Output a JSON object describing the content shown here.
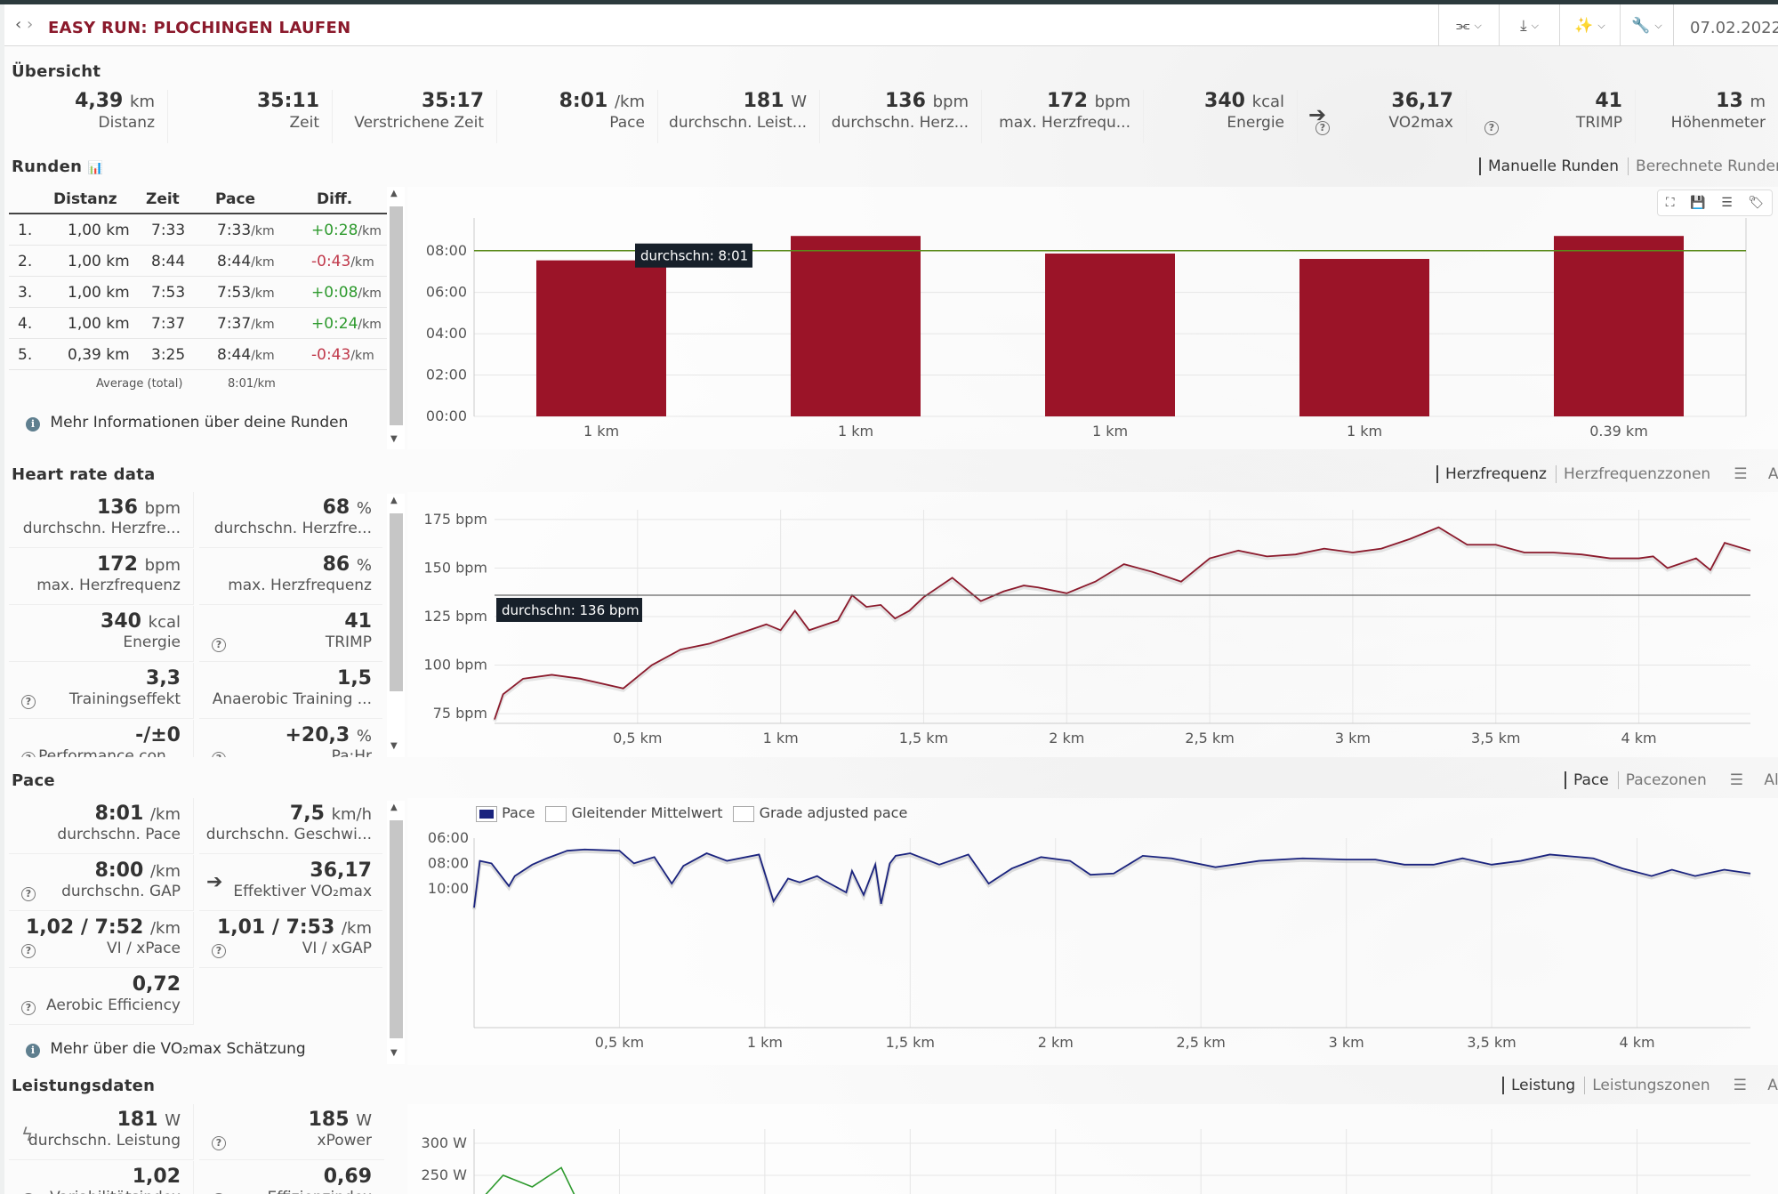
{
  "header": {
    "title": "EASY RUN: PLOCHINGEN LAUFEN",
    "date": "07.02.2022"
  },
  "overview": {
    "title": "Übersicht",
    "items": [
      {
        "value": "4,39",
        "unit": "km",
        "label": "Distanz"
      },
      {
        "value": "35:11",
        "unit": "",
        "label": "Zeit"
      },
      {
        "value": "35:17",
        "unit": "",
        "label": "Verstrichene Zeit"
      },
      {
        "value": "8:01",
        "unit": "/km",
        "label": "Pace"
      },
      {
        "value": "181",
        "unit": "W",
        "label": "durchschn. Leist..."
      },
      {
        "value": "136",
        "unit": "bpm",
        "label": "durchschn. Herz..."
      },
      {
        "value": "172",
        "unit": "bpm",
        "label": "max. Herzfrequ..."
      },
      {
        "value": "340",
        "unit": "kcal",
        "label": "Energie"
      },
      {
        "value": "36,17",
        "unit": "",
        "label": "VO2max"
      },
      {
        "value": "41",
        "unit": "",
        "label": "TRIMP"
      },
      {
        "value": "13",
        "unit": "m",
        "label": "Höhenmeter"
      }
    ]
  },
  "laps": {
    "title": "Runden",
    "tab_manual": "Manuelle Runden",
    "tab_calc": "Berechnete Runden",
    "headers": [
      "Distanz",
      "Zeit",
      "Pace",
      "Diff."
    ],
    "rows": [
      {
        "n": "1.",
        "dist": "1,00 km",
        "time": "7:33",
        "pace": "7:33",
        "diff": "+0:28"
      },
      {
        "n": "2.",
        "dist": "1,00 km",
        "time": "8:44",
        "pace": "8:44",
        "diff": "-0:43"
      },
      {
        "n": "3.",
        "dist": "1,00 km",
        "time": "7:53",
        "pace": "7:53",
        "diff": "+0:08"
      },
      {
        "n": "4.",
        "dist": "1,00 km",
        "time": "7:37",
        "pace": "7:37",
        "diff": "+0:24"
      },
      {
        "n": "5.",
        "dist": "0,39 km",
        "time": "3:25",
        "pace": "8:44",
        "diff": "-0:43"
      }
    ],
    "unit_per_km": "/km",
    "avg_label": "Average (total)",
    "avg_value": "8:01/km",
    "more_info": "Mehr Informationen über deine Runden"
  },
  "heart": {
    "title": "Heart rate data",
    "tabs": [
      "Herzfrequenz",
      "Herzfrequenzzonen",
      "Alle"
    ],
    "stats": [
      {
        "value": "136",
        "unit": "bpm",
        "label": "durchschn. Herzfre..."
      },
      {
        "value": "68",
        "unit": "%",
        "label": "durchschn. Herzfre..."
      },
      {
        "value": "172",
        "unit": "bpm",
        "label": "max. Herzfrequenz"
      },
      {
        "value": "86",
        "unit": "%",
        "label": "max. Herzfrequenz"
      },
      {
        "value": "340",
        "unit": "kcal",
        "label": "Energie"
      },
      {
        "value": "41",
        "unit": "",
        "label": "TRIMP"
      },
      {
        "value": "3,3",
        "unit": "",
        "label": "Trainingseffekt"
      },
      {
        "value": "1,5",
        "unit": "",
        "label": "Anaerobic Training ..."
      },
      {
        "value": "-/±0",
        "unit": "",
        "label": "Performance con..."
      },
      {
        "value": "+20,3",
        "unit": "%",
        "label": "Pa:Hr"
      }
    ]
  },
  "pace": {
    "title": "Pace",
    "tabs": [
      "Pace",
      "Pacezonen",
      "Alle"
    ],
    "legend": [
      "Pace",
      "Gleitender Mittelwert",
      "Grade adjusted pace"
    ],
    "stats": [
      {
        "value": "8:01",
        "unit": "/km",
        "label": "durchschn. Pace"
      },
      {
        "value": "7,5",
        "unit": "km/h",
        "label": "durchschn. Geschwi..."
      },
      {
        "value": "8:00",
        "unit": "/km",
        "label": "durchschn. GAP"
      },
      {
        "value": "36,17",
        "unit": "",
        "label": "Effektiver VO₂max"
      },
      {
        "value": "1,02 / 7:52",
        "unit": "/km",
        "label": "VI / xPace"
      },
      {
        "value": "1,01 / 7:53",
        "unit": "/km",
        "label": "VI / xGAP"
      },
      {
        "value": "0,72",
        "unit": "",
        "label": "Aerobic Efficiency"
      }
    ],
    "more_info": "Mehr über die VO₂max Schätzung"
  },
  "power": {
    "title": "Leistungsdaten",
    "tabs": [
      "Leistung",
      "Leistungszonen",
      "Alle"
    ],
    "stats": [
      {
        "value": "181",
        "unit": "W",
        "label": "durchschn. Leistung"
      },
      {
        "value": "185",
        "unit": "W",
        "label": "xPower"
      },
      {
        "value": "1,02",
        "unit": "",
        "label": "Variabilitätsindex"
      },
      {
        "value": "0,69",
        "unit": "",
        "label": "Effizienzindex"
      }
    ]
  },
  "chart_data": [
    {
      "type": "bar",
      "categories": [
        "1 km",
        "1 km",
        "1 km",
        "1 km",
        "0.39 km"
      ],
      "values": [
        7.55,
        8.73,
        7.88,
        7.62,
        8.73
      ],
      "y_ticks": [
        "08:00",
        "06:00",
        "04:00",
        "02:00",
        "00:00"
      ],
      "ylim": [
        0,
        9.6
      ],
      "average_label": "durchschn: 8:01",
      "average": 8.02,
      "color": "#9b1428",
      "avg_color": "#5a8a1a"
    },
    {
      "type": "line",
      "x_ticks": [
        "0,5 km",
        "1 km",
        "1,5 km",
        "2 km",
        "2,5 km",
        "3 km",
        "3,5 km",
        "4 km"
      ],
      "y_ticks": [
        "175 bpm",
        "150 bpm",
        "125 bpm",
        "100 bpm",
        "75 bpm"
      ],
      "ylim": [
        70,
        180
      ],
      "xlim": [
        0,
        4.39
      ],
      "average_label": "durchschn: 136 bpm",
      "average": 136,
      "color": "#8b1a2c",
      "x": [
        0,
        0.03,
        0.1,
        0.2,
        0.3,
        0.45,
        0.55,
        0.65,
        0.75,
        0.85,
        0.95,
        1.0,
        1.05,
        1.1,
        1.2,
        1.25,
        1.3,
        1.35,
        1.4,
        1.45,
        1.5,
        1.6,
        1.7,
        1.78,
        1.85,
        1.9,
        2.0,
        2.1,
        2.2,
        2.3,
        2.4,
        2.5,
        2.6,
        2.7,
        2.8,
        2.9,
        3.0,
        3.1,
        3.2,
        3.3,
        3.4,
        3.5,
        3.6,
        3.7,
        3.8,
        3.9,
        4.0,
        4.05,
        4.1,
        4.2,
        4.25,
        4.3,
        4.39
      ],
      "y": [
        72,
        85,
        93,
        95,
        93,
        88,
        100,
        108,
        111,
        116,
        121,
        118,
        128,
        118,
        123,
        136,
        130,
        131,
        124,
        128,
        135,
        145,
        133,
        138,
        141,
        140,
        137,
        143,
        152,
        148,
        143,
        155,
        159,
        156,
        157,
        160,
        158,
        160,
        165,
        171,
        162,
        162,
        158,
        158,
        157,
        155,
        155,
        156,
        150,
        155,
        149,
        163,
        159
      ]
    },
    {
      "type": "line",
      "legend": [
        "Pace",
        "Gleitender Mittelwert",
        "Grade adjusted pace"
      ],
      "x_ticks": [
        "0,5 km",
        "1 km",
        "1,5 km",
        "2 km",
        "2,5 km",
        "3 km",
        "3,5 km",
        "4 km"
      ],
      "y_ticks": [
        "06:00",
        "08:00",
        "10:00"
      ],
      "y_reversed": true,
      "ylim": [
        6,
        21
      ],
      "xlim": [
        0,
        4.39
      ],
      "color": "#1a237e",
      "x": [
        0,
        0.02,
        0.06,
        0.12,
        0.14,
        0.2,
        0.25,
        0.32,
        0.38,
        0.5,
        0.55,
        0.62,
        0.68,
        0.72,
        0.8,
        0.87,
        0.98,
        1.03,
        1.08,
        1.12,
        1.18,
        1.2,
        1.28,
        1.3,
        1.34,
        1.38,
        1.4,
        1.43,
        1.45,
        1.5,
        1.6,
        1.7,
        1.77,
        1.85,
        1.95,
        2.05,
        2.12,
        2.2,
        2.3,
        2.4,
        2.55,
        2.7,
        2.85,
        3.0,
        3.1,
        3.2,
        3.3,
        3.4,
        3.5,
        3.6,
        3.7,
        3.85,
        3.95,
        4.05,
        4.12,
        4.2,
        4.3,
        4.39
      ],
      "y": [
        11.5,
        7.8,
        8.0,
        9.8,
        9.0,
        8.1,
        7.6,
        7.0,
        6.9,
        7.0,
        8.0,
        7.5,
        9.6,
        8.2,
        7.2,
        7.8,
        7.3,
        11.0,
        9.2,
        9.5,
        9.0,
        9.3,
        10.3,
        8.6,
        10.5,
        8.1,
        11.2,
        8.0,
        7.4,
        7.2,
        8.1,
        7.3,
        9.6,
        8.4,
        7.5,
        7.8,
        8.9,
        8.8,
        7.4,
        7.6,
        8.3,
        7.8,
        7.6,
        7.7,
        7.7,
        8.1,
        8.1,
        7.6,
        8.1,
        7.8,
        7.3,
        7.6,
        8.4,
        9.0,
        8.5,
        9.0,
        8.5,
        8.8
      ]
    },
    {
      "type": "line",
      "y_ticks": [
        "300 W",
        "250 W"
      ],
      "color": "#2e9a2e",
      "x": [
        0,
        0.1,
        0.2,
        0.3,
        0.35,
        0.45
      ],
      "y": [
        200,
        250,
        232,
        262,
        215,
        205
      ]
    }
  ]
}
